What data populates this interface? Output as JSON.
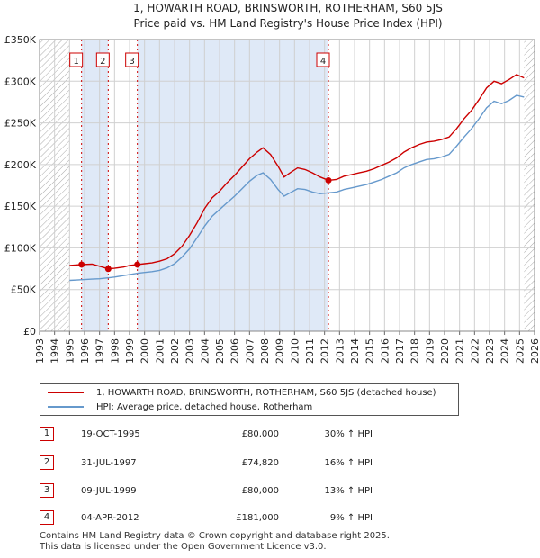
{
  "chart_data": {
    "type": "line",
    "title": "1, HOWARTH ROAD, BRINSWORTH, ROTHERHAM, S60 5JS",
    "subtitle": "Price paid vs. HM Land Registry's House Price Index (HPI)",
    "xlim": [
      1993,
      2026
    ],
    "ylim": [
      0,
      350000
    ],
    "y_ticks": [
      {
        "value": 0,
        "label": "£0"
      },
      {
        "value": 50000,
        "label": "£50K"
      },
      {
        "value": 100000,
        "label": "£100K"
      },
      {
        "value": 150000,
        "label": "£150K"
      },
      {
        "value": 200000,
        "label": "£200K"
      },
      {
        "value": 250000,
        "label": "£250K"
      },
      {
        "value": 300000,
        "label": "£300K"
      },
      {
        "value": 350000,
        "label": "£350K"
      }
    ],
    "x_ticks": [
      "1993",
      "1994",
      "1995",
      "1996",
      "1997",
      "1998",
      "1999",
      "2000",
      "2001",
      "2002",
      "2003",
      "2004",
      "2005",
      "2006",
      "2007",
      "2008",
      "2009",
      "2010",
      "2011",
      "2012",
      "2013",
      "2014",
      "2015",
      "2016",
      "2017",
      "2018",
      "2019",
      "2020",
      "2021",
      "2022",
      "2023",
      "2024",
      "2025",
      "2026"
    ],
    "data_start": 1995.0,
    "data_end": 2025.3,
    "series": [
      {
        "name": "1, HOWARTH ROAD, BRINSWORTH, ROTHERHAM, S60 5JS (detached house)",
        "color": "#cc0000",
        "points": [
          [
            1995.0,
            79000
          ],
          [
            1995.8,
            80000
          ],
          [
            1996.5,
            80500
          ],
          [
            1997.0,
            78000
          ],
          [
            1997.58,
            74820
          ],
          [
            1998.0,
            75500
          ],
          [
            1998.6,
            77000
          ],
          [
            1999.0,
            79000
          ],
          [
            1999.52,
            80000
          ],
          [
            2000.0,
            81000
          ],
          [
            2000.5,
            82000
          ],
          [
            2001.0,
            84000
          ],
          [
            2001.5,
            87000
          ],
          [
            2002.0,
            93000
          ],
          [
            2002.5,
            102000
          ],
          [
            2003.0,
            115000
          ],
          [
            2003.5,
            130000
          ],
          [
            2004.0,
            147000
          ],
          [
            2004.5,
            160000
          ],
          [
            2005.0,
            168000
          ],
          [
            2005.5,
            178000
          ],
          [
            2006.0,
            187000
          ],
          [
            2006.5,
            197000
          ],
          [
            2007.0,
            207000
          ],
          [
            2007.5,
            215000
          ],
          [
            2007.9,
            220000
          ],
          [
            2008.4,
            212000
          ],
          [
            2008.9,
            198000
          ],
          [
            2009.3,
            185000
          ],
          [
            2009.7,
            190000
          ],
          [
            2010.2,
            196000
          ],
          [
            2010.7,
            194000
          ],
          [
            2011.2,
            190000
          ],
          [
            2011.7,
            185000
          ],
          [
            2012.26,
            181000
          ],
          [
            2012.8,
            182000
          ],
          [
            2013.3,
            186000
          ],
          [
            2013.8,
            188000
          ],
          [
            2014.3,
            190000
          ],
          [
            2014.8,
            192000
          ],
          [
            2015.3,
            195000
          ],
          [
            2015.8,
            199000
          ],
          [
            2016.3,
            203000
          ],
          [
            2016.8,
            208000
          ],
          [
            2017.3,
            215000
          ],
          [
            2017.8,
            220000
          ],
          [
            2018.3,
            224000
          ],
          [
            2018.8,
            227000
          ],
          [
            2019.3,
            228000
          ],
          [
            2019.8,
            230000
          ],
          [
            2020.3,
            233000
          ],
          [
            2020.8,
            243000
          ],
          [
            2021.3,
            255000
          ],
          [
            2021.8,
            265000
          ],
          [
            2022.3,
            278000
          ],
          [
            2022.8,
            292000
          ],
          [
            2023.3,
            300000
          ],
          [
            2023.8,
            297000
          ],
          [
            2024.3,
            302000
          ],
          [
            2024.8,
            308000
          ],
          [
            2025.3,
            304000
          ]
        ]
      },
      {
        "name": "HPI: Average price, detached house, Rotherham",
        "color": "#6699cc",
        "points": [
          [
            1995.0,
            61000
          ],
          [
            1995.5,
            61500
          ],
          [
            1996.0,
            62000
          ],
          [
            1996.5,
            62500
          ],
          [
            1997.0,
            63000
          ],
          [
            1997.5,
            64000
          ],
          [
            1998.0,
            65000
          ],
          [
            1998.5,
            66500
          ],
          [
            1999.0,
            68000
          ],
          [
            1999.5,
            69500
          ],
          [
            2000.0,
            70500
          ],
          [
            2000.5,
            71500
          ],
          [
            2001.0,
            73000
          ],
          [
            2001.5,
            76000
          ],
          [
            2002.0,
            81000
          ],
          [
            2002.5,
            89000
          ],
          [
            2003.0,
            99000
          ],
          [
            2003.5,
            112000
          ],
          [
            2004.0,
            126000
          ],
          [
            2004.5,
            138000
          ],
          [
            2005.0,
            146000
          ],
          [
            2005.5,
            154000
          ],
          [
            2006.0,
            162000
          ],
          [
            2006.5,
            171000
          ],
          [
            2007.0,
            180000
          ],
          [
            2007.5,
            187000
          ],
          [
            2007.9,
            190000
          ],
          [
            2008.4,
            182000
          ],
          [
            2008.9,
            170000
          ],
          [
            2009.3,
            162000
          ],
          [
            2009.7,
            166000
          ],
          [
            2010.2,
            171000
          ],
          [
            2010.7,
            170000
          ],
          [
            2011.2,
            167000
          ],
          [
            2011.7,
            165000
          ],
          [
            2012.26,
            166000
          ],
          [
            2012.8,
            167000
          ],
          [
            2013.3,
            170000
          ],
          [
            2013.8,
            172000
          ],
          [
            2014.3,
            174000
          ],
          [
            2014.8,
            176000
          ],
          [
            2015.3,
            179000
          ],
          [
            2015.8,
            182000
          ],
          [
            2016.3,
            186000
          ],
          [
            2016.8,
            190000
          ],
          [
            2017.3,
            196000
          ],
          [
            2017.8,
            200000
          ],
          [
            2018.3,
            203000
          ],
          [
            2018.8,
            206000
          ],
          [
            2019.3,
            207000
          ],
          [
            2019.8,
            209000
          ],
          [
            2020.3,
            212000
          ],
          [
            2020.8,
            222000
          ],
          [
            2021.3,
            233000
          ],
          [
            2021.8,
            243000
          ],
          [
            2022.3,
            255000
          ],
          [
            2022.8,
            268000
          ],
          [
            2023.3,
            276000
          ],
          [
            2023.8,
            273000
          ],
          [
            2024.3,
            277000
          ],
          [
            2024.8,
            283000
          ],
          [
            2025.3,
            281000
          ]
        ]
      }
    ],
    "sales": [
      {
        "label": "1",
        "x": 1995.8,
        "y": 80000
      },
      {
        "label": "2",
        "x": 1997.58,
        "y": 74820
      },
      {
        "label": "3",
        "x": 1999.52,
        "y": 80000
      },
      {
        "label": "4",
        "x": 2012.26,
        "y": 181000
      }
    ],
    "shaded_regions": [
      [
        1995.8,
        1997.58
      ],
      [
        1999.52,
        2012.26
      ]
    ],
    "hatched_regions": [
      [
        1993,
        1995.0
      ],
      [
        2025.3,
        2026
      ]
    ],
    "grid": true
  },
  "legend": {
    "property": "1, HOWARTH ROAD, BRINSWORTH, ROTHERHAM, S60 5JS (detached house)",
    "hpi": "HPI: Average price, detached house, Rotherham"
  },
  "transactions": [
    {
      "num": "1",
      "date": "19-OCT-1995",
      "price": "£80,000",
      "hpi": "30% ↑ HPI"
    },
    {
      "num": "2",
      "date": "31-JUL-1997",
      "price": "£74,820",
      "hpi": "16% ↑ HPI"
    },
    {
      "num": "3",
      "date": "09-JUL-1999",
      "price": "£80,000",
      "hpi": "13% ↑ HPI"
    },
    {
      "num": "4",
      "date": "04-APR-2012",
      "price": "£181,000",
      "hpi": "9% ↑ HPI"
    }
  ],
  "footer": {
    "line1": "Contains HM Land Registry data © Crown copyright and database right 2025.",
    "line2": "This data is licensed under the Open Government Licence v3.0."
  },
  "colors": {
    "property": "#cc0000",
    "hpi": "#6699cc",
    "shade": "#dfe9f7",
    "grid": "#d0d0d0",
    "hatch": "#999999"
  }
}
